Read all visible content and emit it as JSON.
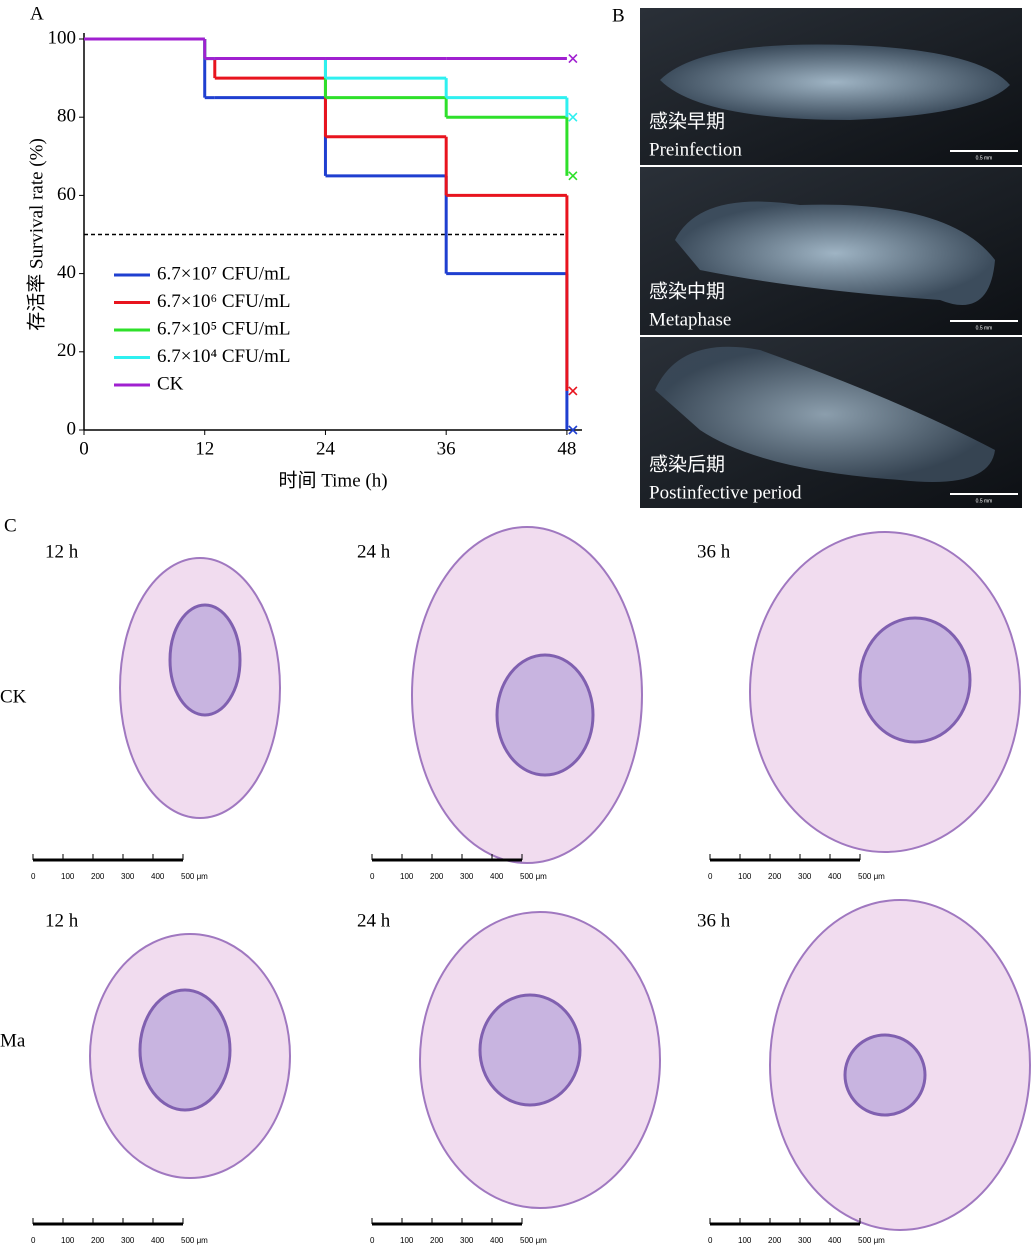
{
  "panel_labels": [
    "A",
    "B",
    "C"
  ],
  "chart_data": {
    "type": "step",
    "xlabel": "时间 Time (h)",
    "ylabel": "存活率 Survival rate (%)",
    "x": [
      0,
      12,
      13,
      24,
      36,
      48
    ],
    "xlim": [
      0,
      49.5
    ],
    "ylim": [
      0,
      100
    ],
    "xticks": [
      0,
      12,
      24,
      36,
      48
    ],
    "yticks": [
      0,
      20,
      40,
      60,
      80,
      100
    ],
    "reference_line": 50,
    "legend": "lower-left",
    "series": [
      {
        "name": "6.7×10⁷ CFU/mL",
        "color": "#1f3fd0",
        "values": [
          100,
          85,
          85,
          65,
          40,
          0
        ]
      },
      {
        "name": "6.7×10⁶ CFU/mL",
        "color": "#e8141e",
        "values": [
          100,
          95,
          90,
          75,
          60,
          10
        ]
      },
      {
        "name": "6.7×10⁵ CFU/mL",
        "color": "#2ee02a",
        "values": [
          100,
          95,
          95,
          85,
          80,
          65
        ]
      },
      {
        "name": "6.7×10⁴ CFU/mL",
        "color": "#2ef0f0",
        "values": [
          100,
          95,
          95,
          90,
          85,
          80
        ]
      },
      {
        "name": "CK",
        "color": "#a020d0",
        "values": [
          100,
          95,
          95,
          95,
          95,
          95
        ]
      }
    ]
  },
  "panel_b": {
    "images": [
      {
        "label_zh": "感染早期",
        "label_en": "Preinfection"
      },
      {
        "label_zh": "感染中期",
        "label_en": "Metaphase"
      },
      {
        "label_zh": "感染后期",
        "label_en": "Postinfective period"
      }
    ],
    "scale_bar": "0.5 mm"
  },
  "panel_c": {
    "times": [
      "12 h",
      "24 h",
      "36 h"
    ],
    "groups": [
      "CK",
      "Ma"
    ],
    "scale_bar": [
      "0",
      "100",
      "200",
      "300",
      "400",
      "500 μm"
    ]
  }
}
